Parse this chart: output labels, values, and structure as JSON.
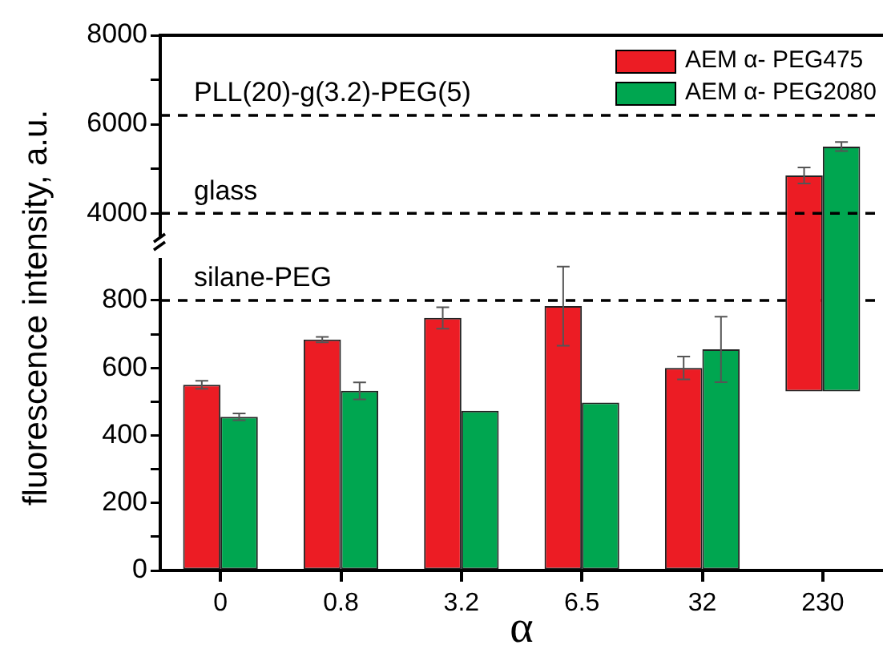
{
  "chart_data": [
    {
      "type": "bar",
      "categories": [
        "0",
        "0.8",
        "3.2",
        "6.5",
        "32",
        "230"
      ],
      "ylim": [
        3500,
        8000
      ],
      "yticks": [
        4000,
        {
          "value": 5000,
          "label": null
        },
        6000,
        {
          "value": 7000,
          "label": null
        },
        8000
      ],
      "tick_labels": "y",
      "grid": false,
      "legend": "top right",
      "series": [
        {
          "name": "AEM α- PEG475",
          "color": "#ec1c24",
          "values": [
            null,
            null,
            null,
            null,
            null,
            4850
          ],
          "errors": [
            null,
            null,
            null,
            null,
            null,
            180
          ]
        },
        {
          "name": "AEM α- PEG2080",
          "color": "#00a650",
          "values": [
            null,
            null,
            null,
            null,
            null,
            5500
          ],
          "errors": [
            null,
            null,
            null,
            null,
            null,
            100
          ]
        }
      ],
      "ref_lines": [
        {
          "axis": "y",
          "value": 6200,
          "label": "PLL(20)-g(3.2)-PEG(5)"
        },
        {
          "axis": "y",
          "value": 4000,
          "label": "glass"
        }
      ]
    },
    {
      "type": "bar",
      "categories": [
        "0",
        "0.8",
        "3.2",
        "6.5",
        "32",
        "230"
      ],
      "ylim": [
        0,
        920
      ],
      "yticks": [
        0,
        {
          "value": 100,
          "label": null
        },
        200,
        {
          "value": 300,
          "label": null
        },
        400,
        {
          "value": 500,
          "label": null
        },
        600,
        {
          "value": 700,
          "label": null
        },
        800
      ],
      "xlabel": "α",
      "ylabel": "fluorescence intensity, a.u.",
      "grid": false,
      "series": [
        {
          "color": "#ec1c24",
          "values": [
            550,
            684,
            748,
            783,
            600,
            null
          ],
          "errors": [
            12,
            8,
            32,
            117,
            34,
            null
          ]
        },
        {
          "color": "#00a650",
          "values": [
            455,
            532,
            473,
            497,
            655,
            null
          ],
          "errors": [
            10,
            25,
            null,
            null,
            97,
            null
          ]
        }
      ],
      "ref_lines": [
        {
          "axis": "y",
          "value": 800,
          "label": "silane-PEG"
        }
      ]
    }
  ]
}
